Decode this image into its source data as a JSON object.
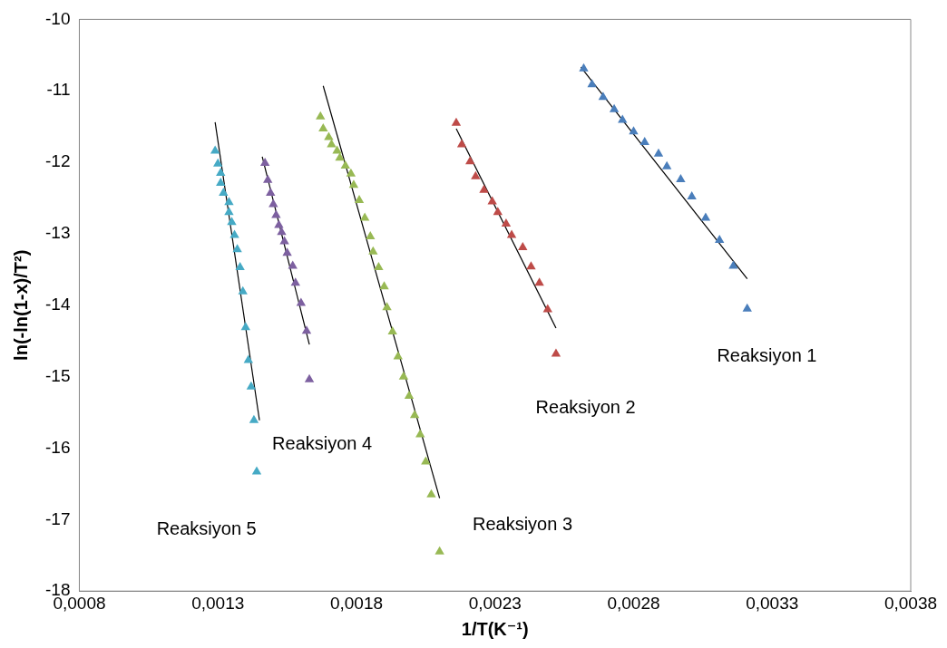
{
  "chart_data": {
    "type": "scatter",
    "xlabel": "1/T(K⁻¹)",
    "ylabel": "ln(-ln(1-x)/T²)",
    "xlim": [
      0.0008,
      0.0038
    ],
    "xticks": [
      {
        "value": 0.0008,
        "label": "0,0008"
      },
      {
        "value": 0.0013,
        "label": "0,0013"
      },
      {
        "value": 0.0018,
        "label": "0,0018"
      },
      {
        "value": 0.0023,
        "label": "0,0023"
      },
      {
        "value": 0.0028,
        "label": "0,0028"
      },
      {
        "value": 0.0033,
        "label": "0,0033"
      },
      {
        "value": 0.0038,
        "label": "0,0038"
      }
    ],
    "ylim": [
      -18,
      -10
    ],
    "yticks": [
      -18,
      -17,
      -16,
      -15,
      -14,
      -13,
      -12,
      -11,
      -10
    ],
    "grid": false,
    "legend": false,
    "marker": "triangle",
    "series": [
      {
        "color": "#4a7ebb",
        "x": [
          0.00262,
          0.00265,
          0.00269,
          0.00273,
          0.00276,
          0.0028,
          0.00284,
          0.00289,
          0.00292,
          0.00297,
          0.00301,
          0.00306,
          0.00311,
          0.00316,
          0.00321
        ],
        "values": [
          -10.69,
          -10.91,
          -11.09,
          -11.26,
          -11.41,
          -11.57,
          -11.72,
          -11.88,
          -12.06,
          -12.24,
          -12.48,
          -12.78,
          -13.09,
          -13.45,
          -14.05
        ]
      },
      {
        "color": "#be4b48",
        "x": [
          0.00216,
          0.00218,
          0.00221,
          0.00223,
          0.00226,
          0.00229,
          0.00231,
          0.00234,
          0.00236,
          0.0024,
          0.00243,
          0.00246,
          0.00249,
          0.00252
        ],
        "values": [
          -11.45,
          -11.75,
          -11.99,
          -12.2,
          -12.39,
          -12.55,
          -12.7,
          -12.86,
          -13.02,
          -13.19,
          -13.46,
          -13.69,
          -14.06,
          -14.68
        ]
      },
      {
        "color": "#98b954",
        "x": [
          0.00167,
          0.00168,
          0.0017,
          0.00171,
          0.00173,
          0.00174,
          0.00176,
          0.00178,
          0.00179,
          0.00181,
          0.00183,
          0.00185,
          0.00186,
          0.00188,
          0.0019,
          0.00191,
          0.00193,
          0.00195,
          0.00197,
          0.00199,
          0.00201,
          0.00203,
          0.00205,
          0.00207,
          0.0021
        ],
        "values": [
          -11.36,
          -11.53,
          -11.65,
          -11.75,
          -11.84,
          -11.94,
          -12.05,
          -12.16,
          -12.32,
          -12.53,
          -12.78,
          -13.04,
          -13.25,
          -13.47,
          -13.74,
          -14.03,
          -14.37,
          -14.72,
          -15.0,
          -15.27,
          -15.54,
          -15.81,
          -16.19,
          -16.65,
          -17.45
        ]
      },
      {
        "color": "#7d60a0",
        "x": [
          0.00147,
          0.00148,
          0.00149,
          0.0015,
          0.00151,
          0.00152,
          0.00153,
          0.00154,
          0.00155,
          0.00157,
          0.00158,
          0.0016,
          0.00162,
          0.00163
        ],
        "values": [
          -12.01,
          -12.25,
          -12.43,
          -12.59,
          -12.74,
          -12.88,
          -12.98,
          -13.11,
          -13.27,
          -13.45,
          -13.69,
          -13.97,
          -14.36,
          -15.04
        ]
      },
      {
        "color": "#46aac5",
        "x": [
          0.00129,
          0.0013,
          0.00131,
          0.00131,
          0.00132,
          0.00134,
          0.00134,
          0.00135,
          0.00136,
          0.00137,
          0.00138,
          0.00139,
          0.0014,
          0.00141,
          0.00142,
          0.00143,
          0.00144
        ],
        "values": [
          -11.84,
          -12.02,
          -12.15,
          -12.29,
          -12.43,
          -12.56,
          -12.7,
          -12.84,
          -13.02,
          -13.22,
          -13.47,
          -13.81,
          -14.31,
          -14.77,
          -15.14,
          -15.61,
          -16.33
        ]
      },
      {
        "type": "line",
        "color": "#000000",
        "marker": "none",
        "x": [
          0.00261,
          0.00321
        ],
        "values": [
          -10.67,
          -13.63
        ]
      },
      {
        "type": "line",
        "color": "#000000",
        "marker": "none",
        "x": [
          0.00216,
          0.00252
        ],
        "values": [
          -11.53,
          -14.32
        ]
      },
      {
        "type": "line",
        "color": "#000000",
        "marker": "none",
        "x": [
          0.00168,
          0.0021
        ],
        "values": [
          -10.93,
          -16.7
        ]
      },
      {
        "type": "line",
        "color": "#000000",
        "marker": "none",
        "x": [
          0.00146,
          0.00163
        ],
        "values": [
          -11.92,
          -14.55
        ]
      },
      {
        "type": "line",
        "color": "#000000",
        "marker": "none",
        "x": [
          0.00129,
          0.00145
        ],
        "values": [
          -11.44,
          -15.61
        ]
      }
    ],
    "annotations": [
      "Reaksiyon 1",
      "Reaksiyon 2",
      "Reaksiyon 3",
      "Reaksiyon 4",
      "Reaksiyon 5"
    ]
  }
}
